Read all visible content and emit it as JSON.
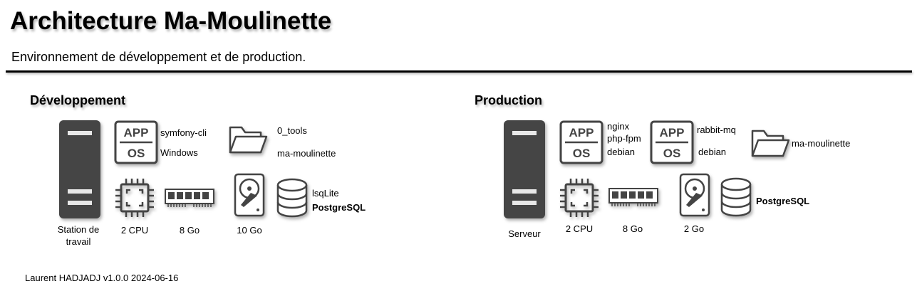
{
  "header": {
    "title": "Architecture Ma-Moulinette",
    "subtitle": "Environnement de développement et de production."
  },
  "development": {
    "title": "Développement",
    "machine_label": "Station de travail",
    "app_os": {
      "app": "APP",
      "os": "OS",
      "app_label": "symfony-cli",
      "os_label": "Windows"
    },
    "folders": [
      "0_tools",
      "ma-moulinette"
    ],
    "cpu": "2 CPU",
    "ram": "8 Go",
    "disk": "10 Go",
    "databases": [
      "lsqLite",
      "PostgreSQL"
    ]
  },
  "production": {
    "title": "Production",
    "machine_label": "Serveur",
    "app_os_1": {
      "app": "APP",
      "os": "OS",
      "labels": [
        "nginx",
        "php-fpm",
        "debian"
      ]
    },
    "app_os_2": {
      "app": "APP",
      "os": "OS",
      "app_label": "rabbit-mq",
      "os_label": "debian"
    },
    "folder": "ma-moulinette",
    "cpu": "2 CPU",
    "ram": "8 Go",
    "disk": "2 Go",
    "database": "PostgreSQL"
  },
  "footer": {
    "text": "Laurent HADJADJ v1.0.0 2024-06-16"
  },
  "icons": [
    "server-tower-icon",
    "app-os-icon",
    "folder-icon",
    "cpu-icon",
    "ram-icon",
    "hard-disk-icon",
    "database-icon"
  ],
  "colors": {
    "icon_dark": "#444444",
    "text": "#000000",
    "background": "#ffffff"
  }
}
